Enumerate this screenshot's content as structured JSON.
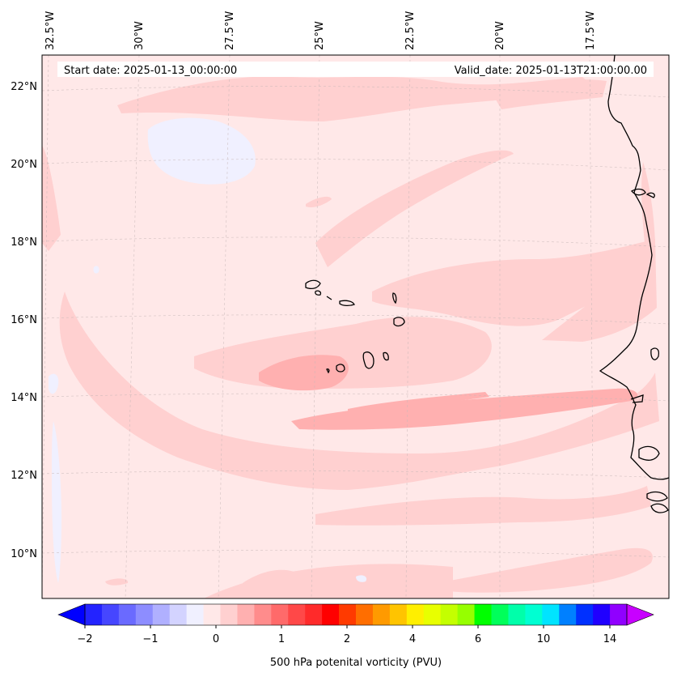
{
  "header": {
    "start_date": "Start date: 2025-01-13_00:00:00",
    "valid_date": "Valid_date: 2025-01-13T21:00:00.00"
  },
  "longitude_labels": [
    "32.5°W",
    "30°W",
    "27.5°W",
    "25°W",
    "22.5°W",
    "20°W",
    "17.5°W"
  ],
  "latitude_labels": [
    "22°N",
    "20°N",
    "18°N",
    "16°N",
    "14°N",
    "12°N",
    "10°N"
  ],
  "colorbar": {
    "label": "500 hPa potenital vorticity (PVU)",
    "tick_labels": [
      "−2",
      "−1",
      "0",
      "1",
      "2",
      "4",
      "6",
      "10",
      "14"
    ],
    "colors": [
      "#0000ff",
      "#2323ff",
      "#4646ff",
      "#6a6aff",
      "#8d8dff",
      "#b0b0ff",
      "#d3d3ff",
      "#f0f0ff",
      "#ffe8e8",
      "#ffd0d0",
      "#ffb0b0",
      "#ff8c8c",
      "#ff6a6a",
      "#ff4848",
      "#ff2a2a",
      "#ff0000",
      "#ff3a00",
      "#ff6e00",
      "#ff9a00",
      "#ffc400",
      "#ffef00",
      "#e8ff00",
      "#c4ff00",
      "#96ff00",
      "#00ff00",
      "#00ff5a",
      "#00ffaa",
      "#00ffd2",
      "#00e4ff",
      "#0080ff",
      "#0030ff",
      "#2000ff",
      "#9000ff",
      "#c800ff"
    ]
  },
  "chart_data": {
    "type": "heatmap",
    "field": "500 hPa potential vorticity",
    "units": "PVU",
    "colorbar_ticks": [
      -2,
      -1,
      0,
      1,
      2,
      4,
      6,
      10,
      14
    ],
    "lon_range": [
      -32.5,
      -15.8
    ],
    "lat_range": [
      8.9,
      22.8
    ],
    "background_level": "0 to 0.25 PVU (pale pink)",
    "features": [
      {
        "name": "broad pink band across central Atlantic near 13-16N",
        "value_range": "0.25-1 PVU"
      },
      {
        "name": "stronger band near 14-15N west of Cape Verde",
        "value_range": "0.5-1 PVU"
      },
      {
        "name": "pale blue patch near 20.5N 29W",
        "value_range": "-0.25-0 PVU"
      }
    ],
    "grid": true
  }
}
